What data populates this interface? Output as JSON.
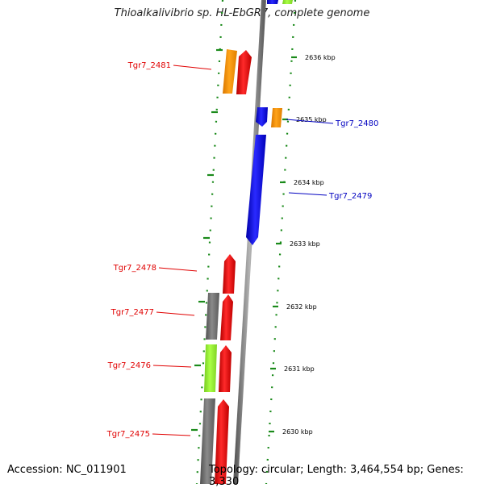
{
  "title": "Thioalkalivibrio sp. HL-EbGR7, complete genome",
  "accession": "Accession: NC_011901",
  "summary": "Topology: circular; Length: 3,464,554 bp; Genes: 3,330",
  "colors": {
    "forward_gene": "#ff0000",
    "reverse_gene": "#0000ff",
    "backbone": "#808080",
    "tick": "#008000",
    "orange_feature": "#ff9900",
    "lime_feature": "#99ff33",
    "gray_feature": "#707070"
  },
  "ticks": [
    {
      "label": "2636 kbp"
    },
    {
      "label": "2635 kbp"
    },
    {
      "label": "2634 kbp"
    },
    {
      "label": "2633 kbp"
    },
    {
      "label": "2632 kbp"
    },
    {
      "label": "2631 kbp"
    },
    {
      "label": "2630 kbp"
    }
  ],
  "genes": [
    {
      "label": "Tgr7_2481",
      "strand": "forward"
    },
    {
      "label": "Tgr7_2480",
      "strand": "reverse"
    },
    {
      "label": "Tgr7_2479",
      "strand": "reverse"
    },
    {
      "label": "Tgr7_2478",
      "strand": "forward"
    },
    {
      "label": "Tgr7_2477",
      "strand": "forward"
    },
    {
      "label": "Tgr7_2476",
      "strand": "forward"
    },
    {
      "label": "Tgr7_2475",
      "strand": "forward"
    }
  ]
}
